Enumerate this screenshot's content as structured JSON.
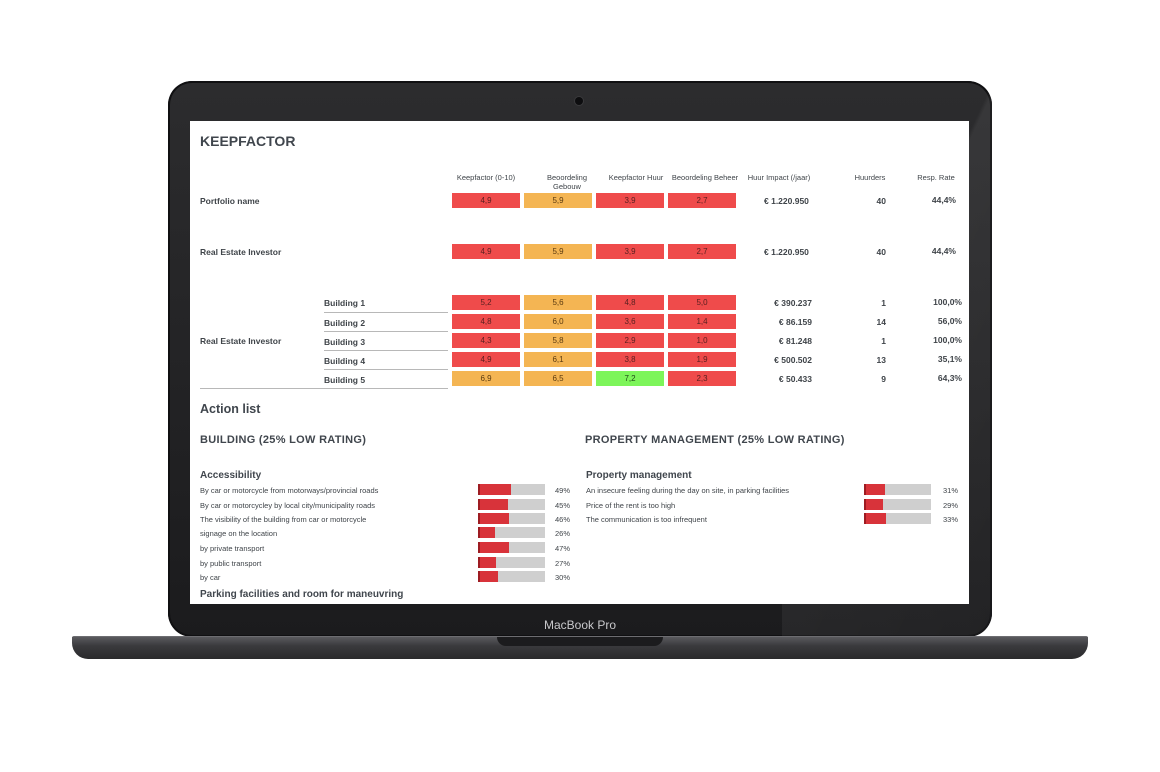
{
  "laptop": {
    "model_label": "MacBook Pro"
  },
  "page_title": "KEEPFACTOR",
  "columns": [
    "Keepfactor (0-10)",
    "Beoordeling Gebouw",
    "Keepfactor Huur",
    "Beoordeling Beheer",
    "Huur Impact (/jaar)",
    "Huurders",
    "Resp. Rate"
  ],
  "portfolio": {
    "label": "Portfolio name",
    "scores": [
      "4,9",
      "5,9",
      "3,9",
      "2,7"
    ],
    "impact": "€ 1.220.950",
    "tenants": "40",
    "rate": "44,4%"
  },
  "investor": {
    "label": "Real Estate Investor",
    "scores": [
      "4,9",
      "5,9",
      "3,9",
      "2,7"
    ],
    "impact": "€ 1.220.950",
    "tenants": "40",
    "rate": "44,4%"
  },
  "investor_group": {
    "label": "Real Estate Investor",
    "buildings": [
      {
        "name": "Building 1",
        "scores": [
          "5,2",
          "5,6",
          "4,8",
          "5,0"
        ],
        "impact": "€ 390.237",
        "tenants": "1",
        "rate": "100,0%"
      },
      {
        "name": "Building 2",
        "scores": [
          "4,8",
          "6,0",
          "3,6",
          "1,4"
        ],
        "impact": "€ 86.159",
        "tenants": "14",
        "rate": "56,0%"
      },
      {
        "name": "Building 3",
        "scores": [
          "4,3",
          "5,8",
          "2,9",
          "1,0"
        ],
        "impact": "€ 81.248",
        "tenants": "1",
        "rate": "100,0%"
      },
      {
        "name": "Building 4",
        "scores": [
          "4,9",
          "6,1",
          "3,8",
          "1,9"
        ],
        "impact": "€ 500.502",
        "tenants": "13",
        "rate": "35,1%"
      },
      {
        "name": "Building 5",
        "scores": [
          "6,9",
          "6,5",
          "7,2",
          "2,3"
        ],
        "impact": "€ 50.433",
        "tenants": "9",
        "rate": "64,3%"
      }
    ]
  },
  "action_list": {
    "title": "Action list",
    "building": {
      "heading": "BUILDING (25% LOW RATING)",
      "groups": [
        {
          "title": "Accessibility",
          "items": [
            {
              "label": "By car or motorcycle from motorways/provincial roads",
              "pct": "49%",
              "value": 0.49
            },
            {
              "label": "By car or motorcycley by local city/municipality roads",
              "pct": "45%",
              "value": 0.45
            },
            {
              "label": "The visibility of the building from car or motorcycle",
              "pct": "46%",
              "value": 0.46
            },
            {
              "label": "signage on the location",
              "pct": "26%",
              "value": 0.26
            },
            {
              "label": "by private transport",
              "pct": "47%",
              "value": 0.47
            },
            {
              "label": "by public transport",
              "pct": "27%",
              "value": 0.27
            },
            {
              "label": "by car",
              "pct": "30%",
              "value": 0.3
            }
          ]
        },
        {
          "title": "Parking facilities and room for maneuvring",
          "items": []
        }
      ]
    },
    "property": {
      "heading": "PROPERTY MANAGEMENT (25% LOW RATING)",
      "groups": [
        {
          "title": "Property management",
          "items": [
            {
              "label": "An insecure feeling during the day on site, in parking facilities",
              "pct": "31%",
              "value": 0.31
            },
            {
              "label": "Price of the rent is too high",
              "pct": "29%",
              "value": 0.29
            },
            {
              "label": "The communication is too infrequent",
              "pct": "33%",
              "value": 0.33
            }
          ]
        }
      ]
    }
  },
  "colors": {
    "low": "#ef4b4b",
    "mid": "#f4b553",
    "high": "#7df55a",
    "bar_fill": "#d8333a",
    "bar_track": "#cfcfcf"
  }
}
